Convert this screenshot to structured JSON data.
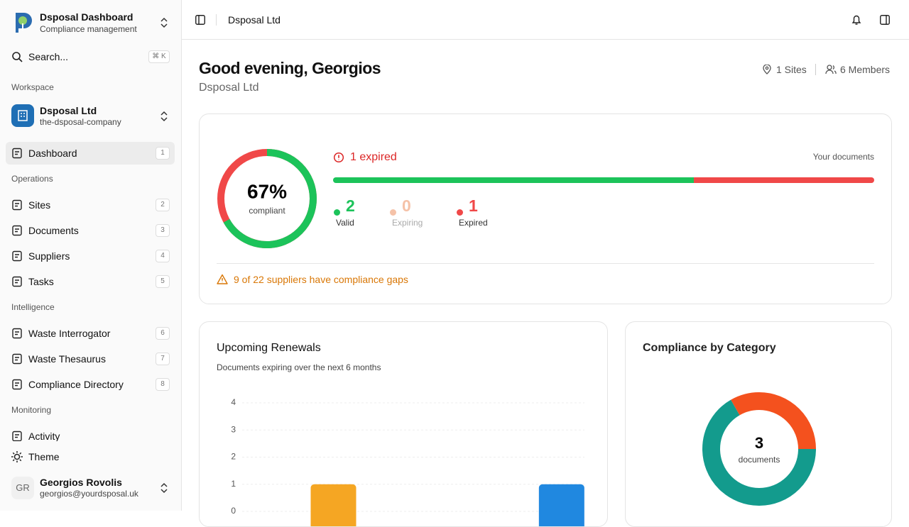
{
  "sidebar": {
    "app_title": "Dsposal Dashboard",
    "app_subtitle": "Compliance management",
    "search": "Search...",
    "search_shortcut": "⌘ K",
    "workspace_label": "Workspace",
    "workspace_name": "Dsposal Ltd",
    "workspace_slug": "the-dsposal-company",
    "nav": [
      {
        "label": null,
        "items": [
          {
            "label": "Dashboard",
            "shortcut": 1,
            "active": true
          }
        ]
      },
      {
        "label": "Operations",
        "items": [
          {
            "label": "Sites",
            "shortcut": 2
          },
          {
            "label": "Documents",
            "shortcut": 3
          },
          {
            "label": "Suppliers",
            "shortcut": 4
          },
          {
            "label": "Tasks",
            "shortcut": 5
          }
        ]
      },
      {
        "label": "Intelligence",
        "items": [
          {
            "label": "Waste Interrogator",
            "shortcut": 6
          },
          {
            "label": "Waste Thesaurus",
            "shortcut": 7
          },
          {
            "label": "Compliance Directory",
            "shortcut": 8
          }
        ]
      },
      {
        "label": "Monitoring",
        "items": [
          {
            "label": "Activity"
          }
        ]
      }
    ],
    "theme": "Theme",
    "user_initials": "GR",
    "user_name": "Georgios Rovolis",
    "user_email": "georgios@yourdsposal.uk"
  },
  "topbar": {
    "title": "Dsposal Ltd"
  },
  "header": {
    "greeting": "Good evening, Georgios",
    "company": "Dsposal Ltd",
    "sites": "1 Sites",
    "members": "6 Members"
  },
  "compliance": {
    "percent": 67,
    "percent_label": "67%",
    "caption": "compliant",
    "ring_color": "#1cc35a",
    "rest_color": "#f04848",
    "alert": "1 expired",
    "documents_label": "Your documents",
    "stats": [
      {
        "value": 2,
        "label": "Valid",
        "color": "#1cc35a"
      },
      {
        "value": 0,
        "label": "Expiring",
        "color": "#f5c2a8"
      },
      {
        "value": 1,
        "label": "Expired",
        "color": "#f04848"
      }
    ],
    "gaps": "9 of 22 suppliers have compliance gaps"
  },
  "renewals": {
    "type": "bar",
    "title": "Upcoming Renewals",
    "subtitle": "Documents expiring over the next 6 months",
    "categories": [
      null,
      null,
      null,
      null,
      null,
      null
    ],
    "values": [
      0,
      1,
      0,
      0,
      0,
      1
    ],
    "colors": [
      null,
      "#f5a623",
      null,
      null,
      null,
      "#2088e0"
    ],
    "ylim": [
      0,
      4
    ],
    "yticks": [
      0,
      1,
      2,
      3,
      4
    ],
    "grid": true
  },
  "categories_chart": {
    "type": "donut",
    "title": "Compliance by Category",
    "total": 3,
    "total_label": "documents",
    "values": [
      2,
      1
    ],
    "colors": [
      "#139b8d",
      "#f4511e"
    ]
  }
}
